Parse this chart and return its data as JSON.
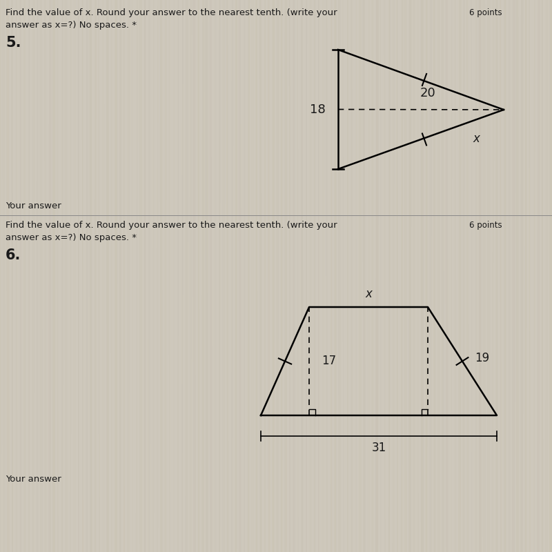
{
  "bg_color": "#cec8bc",
  "text_color": "#1a1a1a",
  "header_text_1": "Find the value of x. Round your answer to the nearest tenth. (write your",
  "header_points_1": "6 points",
  "header_text_2": "answer as x=?) No spaces. *",
  "problem5_number": "5.",
  "problem6_header_text_1": "Find the value of x. Round your answer to the nearest tenth. (write your",
  "problem6_header_points": "6 points",
  "problem6_header_text_2": "answer as x=?) No spaces. *",
  "problem6_number": "6.",
  "your_answer": "Your answer",
  "label18": "18",
  "label20": "20",
  "labelx5": "x",
  "label17": "17",
  "label19": "19",
  "label31": "31",
  "labelx6": "x"
}
